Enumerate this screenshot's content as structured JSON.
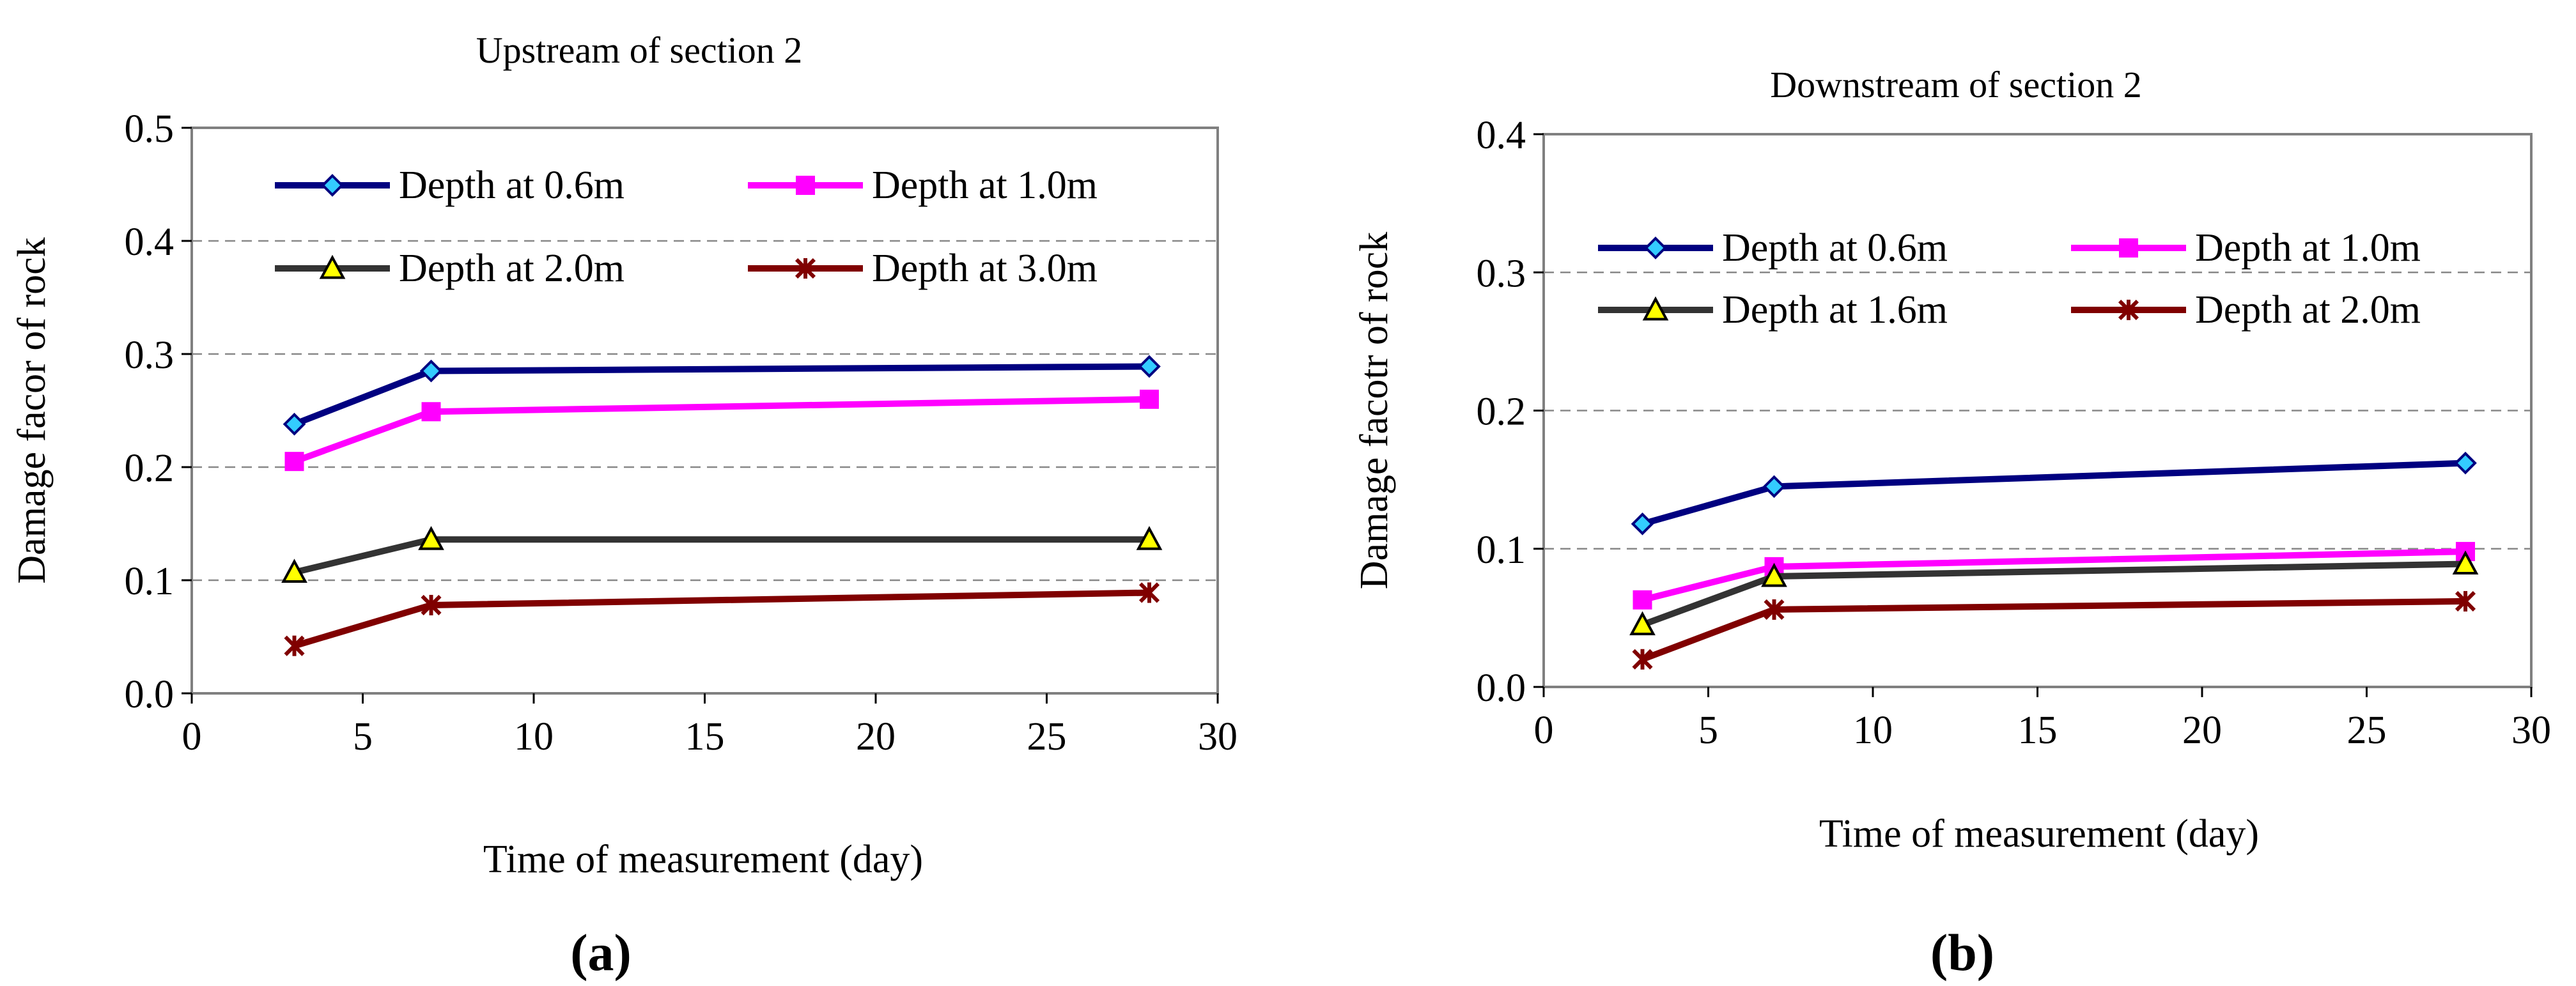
{
  "chart_data": [
    {
      "type": "line",
      "panel_label": "(a)",
      "title": "Upstream of section 2",
      "xlabel": "Time of measurement (day)",
      "ylabel": "Damage facor of rock",
      "xlim": [
        0,
        30
      ],
      "ylim": [
        0,
        0.5
      ],
      "xticks": [
        0,
        5,
        10,
        15,
        20,
        25,
        30
      ],
      "yticks": [
        0.0,
        0.1,
        0.2,
        0.3,
        0.4,
        0.5
      ],
      "xtick_labels": [
        "0",
        "5",
        "10",
        "15",
        "20",
        "25",
        "30"
      ],
      "ytick_labels": [
        "0.0",
        "0.1",
        "0.2",
        "0.3",
        "0.4",
        "0.5"
      ],
      "grid": "horizontal dashed",
      "legend_position": "top, inside plot",
      "x": [
        3,
        7,
        28
      ],
      "series": [
        {
          "name": "Depth at 0.6m",
          "values": [
            0.238,
            0.285,
            0.289
          ],
          "color": "#000080",
          "marker": "diamond",
          "marker_fill": "#33CCFF"
        },
        {
          "name": "Depth at 1.0m",
          "values": [
            0.205,
            0.249,
            0.26
          ],
          "color": "#FF00FF",
          "marker": "square",
          "marker_fill": "#FF00FF"
        },
        {
          "name": "Depth at 2.0m",
          "values": [
            0.107,
            0.136,
            0.136
          ],
          "color": "#333333",
          "marker": "triangle",
          "marker_fill": "#FFFF00"
        },
        {
          "name": "Depth at 3.0m",
          "values": [
            0.042,
            0.078,
            0.089
          ],
          "color": "#800000",
          "marker": "asterisk",
          "marker_fill": "#800000"
        }
      ]
    },
    {
      "type": "line",
      "panel_label": "(b)",
      "title": "Downstream of section 2",
      "xlabel": "Time of measurement (day)",
      "ylabel": "Damage facotr of rock",
      "xlim": [
        0,
        30
      ],
      "ylim": [
        0,
        0.4
      ],
      "xticks": [
        0,
        5,
        10,
        15,
        20,
        25,
        30
      ],
      "yticks": [
        0.0,
        0.1,
        0.2,
        0.3,
        0.4
      ],
      "xtick_labels": [
        "0",
        "5",
        "10",
        "15",
        "20",
        "25",
        "30"
      ],
      "ytick_labels": [
        "0.0",
        "0.1",
        "0.2",
        "0.3",
        "0.4"
      ],
      "grid": "horizontal dashed",
      "legend_position": "top, inside plot",
      "x": [
        3,
        7,
        28
      ],
      "series": [
        {
          "name": "Depth at 0.6m",
          "values": [
            0.118,
            0.145,
            0.162
          ],
          "color": "#000080",
          "marker": "diamond",
          "marker_fill": "#33CCFF"
        },
        {
          "name": "Depth at 1.0m",
          "values": [
            0.063,
            0.087,
            0.098
          ],
          "color": "#FF00FF",
          "marker": "square",
          "marker_fill": "#FF00FF"
        },
        {
          "name": "Depth at 1.6m",
          "values": [
            0.045,
            0.08,
            0.089
          ],
          "color": "#333333",
          "marker": "triangle",
          "marker_fill": "#FFFF00"
        },
        {
          "name": "Depth at 2.0m",
          "values": [
            0.02,
            0.056,
            0.062
          ],
          "color": "#800000",
          "marker": "asterisk",
          "marker_fill": "#800000"
        }
      ]
    }
  ]
}
